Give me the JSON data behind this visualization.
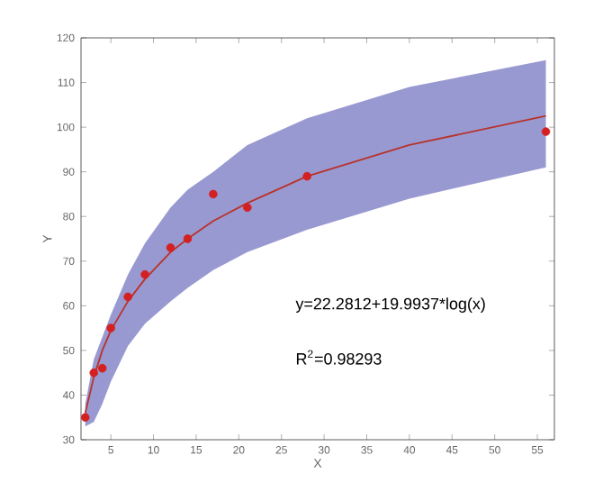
{
  "chart_data": {
    "type": "scatter",
    "xlabel": "X",
    "ylabel": "Y",
    "xlim": [
      1.5,
      57
    ],
    "ylim": [
      30,
      120
    ],
    "xticks": [
      5,
      10,
      15,
      20,
      25,
      30,
      35,
      40,
      45,
      50,
      55
    ],
    "yticks": [
      30,
      40,
      50,
      60,
      70,
      80,
      90,
      100,
      110,
      120
    ],
    "series": [
      {
        "type": "line",
        "color": "#b8322a",
        "marker": "none",
        "line_style": "solid",
        "x": [
          2,
          3,
          4,
          5,
          7,
          9,
          12,
          14,
          17,
          21,
          28,
          40,
          56
        ],
        "values": [
          36,
          44,
          50,
          54.5,
          61,
          66,
          72,
          75,
          79,
          83,
          89,
          96,
          102.5
        ],
        "lower": [
          33,
          34,
          38,
          43,
          51,
          56,
          61,
          64,
          68,
          72,
          77,
          84,
          91
        ],
        "upper": [
          38,
          48,
          53,
          58,
          67,
          74,
          82,
          86,
          90,
          96,
          102,
          109,
          115
        ]
      },
      {
        "color": "#d42020",
        "marker": "circle",
        "x": [
          2,
          3,
          4,
          5,
          7,
          9,
          12,
          14,
          17,
          21,
          28,
          56
        ],
        "values": [
          35,
          45,
          46,
          55,
          62,
          67,
          73,
          75,
          85,
          82,
          89,
          99
        ]
      }
    ],
    "annotations": [
      "y=22.2812+19.9937*log(x)",
      "R$^{2}$=0.98293"
    ]
  }
}
